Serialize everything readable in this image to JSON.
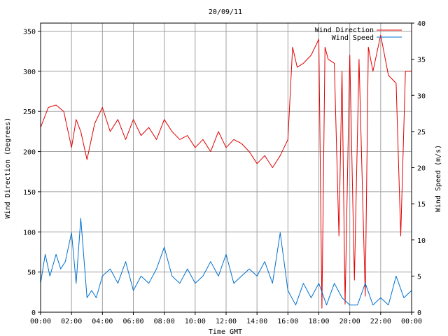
{
  "chart_data": {
    "type": "line",
    "title": "20/09/11",
    "xlabel": "Time GMT",
    "ylabel_left": "Wind Direction (Degrees)",
    "ylabel_right": "Wind Speed (m/s)",
    "x_ticks": [
      "00:00",
      "02:00",
      "04:00",
      "06:00",
      "08:00",
      "10:00",
      "12:00",
      "14:00",
      "16:00",
      "18:00",
      "20:00",
      "22:00",
      "00:00"
    ],
    "y_left_ticks": [
      "0",
      "50",
      "100",
      "150",
      "200",
      "250",
      "300",
      "350"
    ],
    "y_right_ticks": [
      "0",
      "5",
      "10",
      "15",
      "20",
      "25",
      "30",
      "35",
      "40"
    ],
    "x_range_hours": [
      0,
      24
    ],
    "ylim_left": [
      0,
      360
    ],
    "ylim_right": [
      0,
      40
    ],
    "grid": true,
    "legend_position": "top-right",
    "series": [
      {
        "name": "Wind Direction",
        "axis": "left",
        "color": "#e00000",
        "x": [
          0,
          0.5,
          1,
          1.5,
          2,
          2.3,
          2.6,
          3,
          3.5,
          4,
          4.5,
          5,
          5.5,
          6,
          6.5,
          7,
          7.5,
          8,
          8.5,
          9,
          9.5,
          10,
          10.5,
          11,
          11.5,
          12,
          12.5,
          13,
          13.5,
          14,
          14.5,
          15,
          15.5,
          16,
          16.3,
          16.6,
          17,
          17.5,
          18,
          18.2,
          18.4,
          18.6,
          19,
          19.3,
          19.5,
          19.7,
          20,
          20.3,
          20.6,
          21,
          21.2,
          21.5,
          22,
          22.5,
          23,
          23.3,
          23.6,
          24
        ],
        "y": [
          230,
          255,
          258,
          250,
          205,
          240,
          225,
          190,
          235,
          255,
          225,
          240,
          215,
          240,
          220,
          230,
          215,
          240,
          225,
          215,
          220,
          205,
          215,
          200,
          225,
          205,
          215,
          210,
          200,
          185,
          195,
          180,
          195,
          215,
          330,
          305,
          310,
          320,
          340,
          5,
          330,
          315,
          310,
          95,
          300,
          10,
          320,
          40,
          315,
          20,
          330,
          300,
          345,
          295,
          285,
          95,
          300,
          300
        ]
      },
      {
        "name": "Wind Speed",
        "axis": "right",
        "color": "#0070d0",
        "x": [
          0,
          0.3,
          0.6,
          1,
          1.3,
          1.6,
          2,
          2.3,
          2.6,
          3,
          3.3,
          3.6,
          4,
          4.5,
          5,
          5.5,
          6,
          6.5,
          7,
          7.5,
          8,
          8.5,
          9,
          9.5,
          10,
          10.5,
          11,
          11.5,
          12,
          12.5,
          13,
          13.5,
          14,
          14.5,
          15,
          15.5,
          16,
          16.5,
          17,
          17.5,
          18,
          18.5,
          19,
          19.5,
          20,
          20.5,
          21,
          21.5,
          22,
          22.5,
          23,
          23.5,
          24
        ],
        "y": [
          4,
          8,
          5,
          8,
          6,
          7,
          11,
          4,
          13,
          2,
          3,
          2,
          5,
          6,
          4,
          7,
          3,
          5,
          4,
          6,
          9,
          5,
          4,
          6,
          4,
          5,
          7,
          5,
          8,
          4,
          5,
          6,
          5,
          7,
          4,
          11,
          3,
          1,
          4,
          2,
          4,
          1,
          4,
          2,
          1,
          1,
          4,
          1,
          2,
          1,
          5,
          2,
          3
        ]
      }
    ]
  }
}
